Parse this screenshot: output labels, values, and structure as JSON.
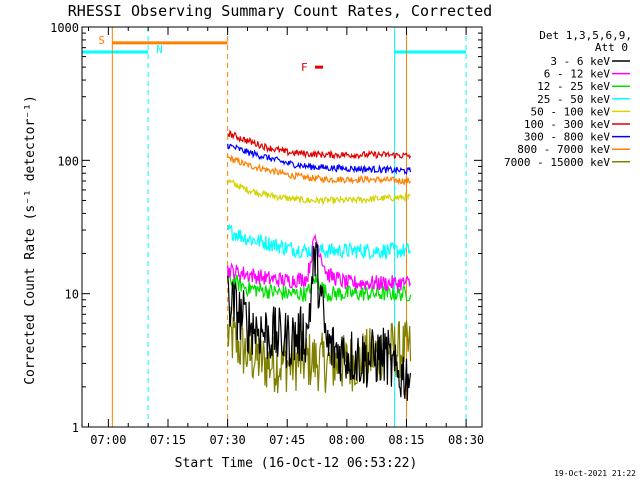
{
  "chart_data": {
    "type": "line",
    "title": "RHESSI Observing Summary Count Rates, Corrected",
    "xlabel": "Start Time (16-Oct-12 06:53:22)",
    "ylabel": "Corrected Count Rate (s⁻¹ detector⁻¹)",
    "yscale": "log",
    "ylim": [
      1,
      1000
    ],
    "xlim": [
      "06:53:22",
      "08:34:00"
    ],
    "x_ticks": [
      "07:00",
      "07:15",
      "07:30",
      "07:45",
      "08:00",
      "08:15",
      "08:30"
    ],
    "y_ticks": [
      "1",
      "10",
      "100",
      "1000"
    ],
    "data_window": [
      "07:30",
      "08:16"
    ],
    "legend_header": [
      "Det 1,3,5,6,9,",
      "Att 0"
    ],
    "series": [
      {
        "name": "3 - 6 keV",
        "color": "#000000",
        "points": [
          [
            "07:30",
            9
          ],
          [
            "07:35",
            6
          ],
          [
            "07:40",
            5
          ],
          [
            "07:45",
            4.5
          ],
          [
            "07:50",
            5
          ],
          [
            "07:52",
            20
          ],
          [
            "07:55",
            4
          ],
          [
            "08:00",
            3.5
          ],
          [
            "08:05",
            3.2
          ],
          [
            "08:10",
            3.5
          ],
          [
            "08:12",
            2.5
          ],
          [
            "08:16",
            2.5
          ]
        ]
      },
      {
        "name": "6 - 12 keV",
        "color": "#ff00ff",
        "points": [
          [
            "07:30",
            15
          ],
          [
            "07:35",
            14
          ],
          [
            "07:40",
            13
          ],
          [
            "07:45",
            12.5
          ],
          [
            "07:50",
            13
          ],
          [
            "07:52",
            27
          ],
          [
            "07:55",
            14
          ],
          [
            "08:00",
            12
          ],
          [
            "08:05",
            12
          ],
          [
            "08:10",
            12
          ],
          [
            "08:16",
            12
          ]
        ]
      },
      {
        "name": "12 - 25 keV",
        "color": "#00e000",
        "points": [
          [
            "07:30",
            13
          ],
          [
            "07:35",
            11
          ],
          [
            "07:40",
            10.5
          ],
          [
            "07:45",
            10
          ],
          [
            "07:50",
            10
          ],
          [
            "07:52",
            13
          ],
          [
            "07:55",
            10
          ],
          [
            "08:00",
            10
          ],
          [
            "08:05",
            10
          ],
          [
            "08:10",
            10
          ],
          [
            "08:16",
            10
          ]
        ]
      },
      {
        "name": "25 - 50 keV",
        "color": "#00ffff",
        "points": [
          [
            "07:30",
            30
          ],
          [
            "07:35",
            26
          ],
          [
            "07:40",
            24
          ],
          [
            "07:45",
            22
          ],
          [
            "07:50",
            21
          ],
          [
            "07:55",
            21
          ],
          [
            "08:00",
            21
          ],
          [
            "08:05",
            21
          ],
          [
            "08:10",
            21
          ],
          [
            "08:16",
            21
          ]
        ]
      },
      {
        "name": "50 - 100 keV",
        "color": "#d4d400",
        "points": [
          [
            "07:30",
            70
          ],
          [
            "07:35",
            60
          ],
          [
            "07:40",
            55
          ],
          [
            "07:45",
            52
          ],
          [
            "07:50",
            50
          ],
          [
            "07:55",
            50
          ],
          [
            "08:00",
            50
          ],
          [
            "08:05",
            51
          ],
          [
            "08:10",
            52
          ],
          [
            "08:16",
            53
          ]
        ]
      },
      {
        "name": "100 - 300 keV",
        "color": "#e00000",
        "points": [
          [
            "07:30",
            160
          ],
          [
            "07:35",
            140
          ],
          [
            "07:40",
            125
          ],
          [
            "07:45",
            115
          ],
          [
            "07:50",
            112
          ],
          [
            "07:55",
            110
          ],
          [
            "08:00",
            110
          ],
          [
            "08:05",
            110
          ],
          [
            "08:10",
            110
          ],
          [
            "08:16",
            108
          ]
        ]
      },
      {
        "name": "300 - 800 keV",
        "color": "#0000ff",
        "points": [
          [
            "07:30",
            130
          ],
          [
            "07:35",
            115
          ],
          [
            "07:40",
            105
          ],
          [
            "07:45",
            95
          ],
          [
            "07:50",
            90
          ],
          [
            "07:55",
            88
          ],
          [
            "08:00",
            87
          ],
          [
            "08:05",
            86
          ],
          [
            "08:10",
            85
          ],
          [
            "08:16",
            83
          ]
        ]
      },
      {
        "name": "800 - 7000 keV",
        "color": "#ff8000",
        "points": [
          [
            "07:30",
            105
          ],
          [
            "07:35",
            92
          ],
          [
            "07:40",
            85
          ],
          [
            "07:45",
            78
          ],
          [
            "07:50",
            74
          ],
          [
            "07:55",
            72
          ],
          [
            "08:00",
            72
          ],
          [
            "08:05",
            72
          ],
          [
            "08:10",
            71
          ],
          [
            "08:16",
            70
          ]
        ]
      },
      {
        "name": "7000 - 15000 keV",
        "color": "#808000",
        "points": [
          [
            "07:30",
            5
          ],
          [
            "07:35",
            3.5
          ],
          [
            "07:40",
            3
          ],
          [
            "07:45",
            3
          ],
          [
            "07:50",
            3.2
          ],
          [
            "07:55",
            3
          ],
          [
            "08:00",
            3
          ],
          [
            "08:05",
            3.3
          ],
          [
            "08:10",
            3.8
          ],
          [
            "08:16",
            3.8
          ]
        ]
      }
    ],
    "annotations": [
      {
        "label": "S",
        "color": "#ff8000",
        "x_range": [
          "07:01",
          "07:30"
        ],
        "y": 760
      },
      {
        "label": "N",
        "color": "#00ffff",
        "x_range": [
          "06:53:22",
          "07:10"
        ],
        "y": 650
      },
      {
        "label": "F",
        "color": "#e00000",
        "x_range": [
          "07:52",
          "07:54"
        ],
        "y": 500
      }
    ],
    "night_spans": [
      [
        "06:53:22",
        "07:10"
      ],
      [
        "08:12",
        "08:30"
      ]
    ],
    "vertical_lines": [
      {
        "x": "07:01",
        "color": "#ff8000",
        "dashed": false
      },
      {
        "x": "07:10",
        "color": "#00ffff",
        "dashed": true
      },
      {
        "x": "07:30",
        "color": "#ff8000",
        "dashed": true
      },
      {
        "x": "08:12",
        "color": "#00ffff",
        "dashed": false
      },
      {
        "x": "08:15",
        "color": "#ff8000",
        "dashed": false
      },
      {
        "x": "08:30",
        "color": "#00ffff",
        "dashed": true
      }
    ]
  },
  "footer": {
    "timestamp": "19-Oct-2021 21:22"
  }
}
